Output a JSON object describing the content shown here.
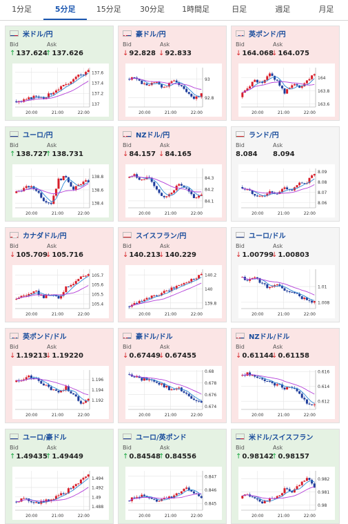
{
  "tabs": [
    "1分足",
    "5分足",
    "15分足",
    "30分足",
    "1時間足",
    "日足",
    "週足",
    "月足"
  ],
  "active_tab": 1,
  "labels": {
    "bid": "Bid",
    "ask": "Ask"
  },
  "colors": {
    "up": "#14a53c",
    "down": "#d7262a",
    "candle_up": "#d81e2a",
    "candle_down": "#1f3d9c",
    "ma_fast": "#2a87d4",
    "ma_slow": "#b23cd8",
    "grid": "#e3e3e3"
  },
  "x_ticks": [
    "20:00",
    "21:00",
    "22:00"
  ],
  "pairs": [
    {
      "name": "米ドル/円",
      "flag": "us",
      "state": "up",
      "bid_dir": "up",
      "bid": "137.624",
      "ask_dir": "up",
      "ask": "137.626",
      "ticks": [
        "137.6",
        "137.4",
        "137.2",
        "137"
      ],
      "ylim": [
        136.94,
        137.69
      ],
      "trend": [
        137.05,
        137.04,
        137.1,
        137.15,
        137.12,
        137.2,
        137.3,
        137.35,
        137.5,
        137.55,
        137.62
      ]
    },
    {
      "name": "豪ドル/円",
      "flag": "au",
      "state": "down",
      "bid_dir": "down",
      "bid": "92.828",
      "ask_dir": "down",
      "ask": "92.833",
      "ticks": [
        "93",
        "92.8"
      ],
      "ylim": [
        92.7,
        93.12
      ],
      "trend": [
        93.0,
        93.02,
        92.95,
        92.93,
        92.97,
        92.9,
        92.98,
        92.95,
        92.87,
        92.8,
        92.83
      ]
    },
    {
      "name": "英ポンド/円",
      "flag": "uk",
      "state": "down",
      "bid_dir": "down",
      "bid": "164.068",
      "ask_dir": "down",
      "ask": "164.075",
      "ticks": [
        "164",
        "163.8",
        "163.6"
      ],
      "ylim": [
        163.55,
        164.15
      ],
      "trend": [
        163.7,
        163.85,
        163.95,
        163.9,
        164.05,
        163.95,
        163.75,
        163.9,
        163.85,
        163.95,
        164.07
      ]
    },
    {
      "name": "ユーロ/円",
      "flag": "eu",
      "state": "up",
      "bid_dir": "up",
      "bid": "138.727",
      "ask_dir": "up",
      "ask": "138.731",
      "ticks": [
        "138.8",
        "138.6",
        "138.4"
      ],
      "ylim": [
        138.33,
        138.92
      ],
      "trend": [
        138.55,
        138.6,
        138.65,
        138.6,
        138.45,
        138.4,
        138.75,
        138.8,
        138.6,
        138.7,
        138.73
      ]
    },
    {
      "name": "NZドル/円",
      "flag": "nz",
      "state": "down",
      "bid_dir": "down",
      "bid": "84.157",
      "ask_dir": "down",
      "ask": "84.165",
      "ticks": [
        "84.3",
        "84.2",
        "84.1"
      ],
      "ylim": [
        84.04,
        84.38
      ],
      "trend": [
        84.3,
        84.32,
        84.28,
        84.3,
        84.2,
        84.12,
        84.18,
        84.25,
        84.2,
        84.12,
        84.16
      ]
    },
    {
      "name": "ランド/円",
      "flag": "za",
      "state": "flat",
      "bid_dir": "",
      "bid": "8.084",
      "ask_dir": "",
      "ask": "8.094",
      "ticks": [
        "8.09",
        "8.08",
        "8.07",
        "8.06"
      ],
      "ylim": [
        8.055,
        8.093
      ],
      "trend": [
        8.075,
        8.072,
        8.068,
        8.066,
        8.07,
        8.068,
        8.075,
        8.072,
        8.078,
        8.08,
        8.088
      ]
    },
    {
      "name": "カナダドル/円",
      "flag": "ca",
      "state": "down",
      "bid_dir": "down",
      "bid": "105.709",
      "ask_dir": "down",
      "ask": "105.716",
      "ticks": [
        "105.7",
        "105.6",
        "105.5",
        "105.4"
      ],
      "ylim": [
        105.35,
        105.76
      ],
      "trend": [
        105.45,
        105.48,
        105.5,
        105.52,
        105.47,
        105.5,
        105.45,
        105.58,
        105.62,
        105.68,
        105.71
      ]
    },
    {
      "name": "スイスフラン/円",
      "flag": "ch",
      "state": "down",
      "bid_dir": "down",
      "bid": "140.213",
      "ask_dir": "down",
      "ask": "140.229",
      "ticks": [
        "140.2",
        "140",
        "139.8"
      ],
      "ylim": [
        139.72,
        140.28
      ],
      "trend": [
        139.75,
        139.8,
        139.85,
        139.88,
        139.9,
        139.95,
        140.0,
        140.05,
        140.1,
        140.15,
        140.21
      ]
    },
    {
      "name": "ユーロ/ドル",
      "flag": "eu",
      "state": "flat",
      "bid_dir": "down",
      "bid": "1.00799",
      "ask_dir": "down",
      "ask": "1.00803",
      "ticks": [
        "1.01",
        "1.008"
      ],
      "ylim": [
        1.0072,
        1.0122
      ],
      "trend": [
        1.0112,
        1.0108,
        1.0112,
        1.0104,
        1.0098,
        1.0102,
        1.0096,
        1.0092,
        1.0088,
        1.0082,
        1.0081
      ]
    },
    {
      "name": "英ポンド/ドル",
      "flag": "uk",
      "state": "down",
      "bid_dir": "down",
      "bid": "1.19213",
      "ask_dir": "down",
      "ask": "1.19220",
      "ticks": [
        "1.196",
        "1.194",
        "1.192"
      ],
      "ylim": [
        1.1902,
        1.1978
      ],
      "trend": [
        1.1955,
        1.196,
        1.1965,
        1.196,
        1.195,
        1.194,
        1.1935,
        1.1945,
        1.193,
        1.1915,
        1.1921
      ]
    },
    {
      "name": "豪ドル/ドル",
      "flag": "au",
      "state": "down",
      "bid_dir": "down",
      "bid": "0.67449",
      "ask_dir": "down",
      "ask": "0.67455",
      "ticks": [
        "0.68",
        "0.678",
        "0.676",
        "0.674"
      ],
      "ylim": [
        0.6735,
        0.6802
      ],
      "trend": [
        0.6795,
        0.6792,
        0.6785,
        0.6788,
        0.678,
        0.6775,
        0.6768,
        0.677,
        0.676,
        0.675,
        0.6745
      ]
    },
    {
      "name": "NZドル/ドル",
      "flag": "nz",
      "state": "down",
      "bid_dir": "down",
      "bid": "0.61144",
      "ask_dir": "down",
      "ask": "0.61158",
      "ticks": [
        "0.616",
        "0.614",
        "0.612"
      ],
      "ylim": [
        0.6109,
        0.6162
      ],
      "trend": [
        0.6155,
        0.6157,
        0.6152,
        0.615,
        0.6145,
        0.6142,
        0.6138,
        0.614,
        0.6128,
        0.6118,
        0.6114
      ]
    },
    {
      "name": "ユーロ/豪ドル",
      "flag": "eu",
      "state": "up",
      "bid_dir": "up",
      "bid": "1.49435",
      "ask_dir": "up",
      "ask": "1.49449",
      "ticks": [
        "1.494",
        "1.492",
        "1.49",
        "1.488"
      ],
      "ylim": [
        1.4872,
        1.4955
      ],
      "trend": [
        1.489,
        1.4895,
        1.4893,
        1.4888,
        1.489,
        1.4895,
        1.4905,
        1.491,
        1.4925,
        1.4935,
        1.4944
      ]
    },
    {
      "name": "ユーロ/英ポンド",
      "flag": "eu",
      "state": "up",
      "bid_dir": "up",
      "bid": "0.84548",
      "ask_dir": "up",
      "ask": "0.84556",
      "ticks": [
        "0.847",
        "0.846",
        "0.845"
      ],
      "ylim": [
        0.8445,
        0.8474
      ],
      "trend": [
        0.8452,
        0.8454,
        0.8456,
        0.8453,
        0.8451,
        0.8455,
        0.8454,
        0.8458,
        0.8462,
        0.8458,
        0.8455
      ]
    },
    {
      "name": "米ドル/スイスフラン",
      "flag": "us",
      "state": "up",
      "bid_dir": "up",
      "bid": "0.98142",
      "ask_dir": "up",
      "ask": "0.98157",
      "ticks": [
        "0.982",
        "0.981",
        "0.98"
      ],
      "ylim": [
        0.9796,
        0.9826
      ],
      "trend": [
        0.9805,
        0.9808,
        0.9806,
        0.9802,
        0.9804,
        0.9806,
        0.9812,
        0.981,
        0.9815,
        0.982,
        0.9814
      ]
    }
  ]
}
